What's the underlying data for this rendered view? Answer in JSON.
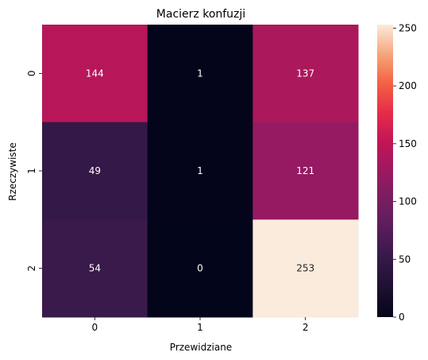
{
  "chart_data": {
    "type": "heatmap",
    "title": "Macierz konfuzji",
    "xlabel": "Przewidziane",
    "ylabel": "Rzeczywiste",
    "x_categories": [
      "0",
      "1",
      "2"
    ],
    "y_categories": [
      "0",
      "1",
      "2"
    ],
    "values": [
      [
        144,
        1,
        137
      ],
      [
        49,
        1,
        121
      ],
      [
        54,
        0,
        253
      ]
    ],
    "colorbar": {
      "range": [
        0,
        253
      ],
      "ticks": [
        "0",
        "50",
        "100",
        "150",
        "200",
        "250"
      ],
      "tick_values": [
        0,
        50,
        100,
        150,
        200,
        250
      ]
    },
    "colormap": "rocket",
    "grid": false,
    "legend": "colorbar-right"
  }
}
